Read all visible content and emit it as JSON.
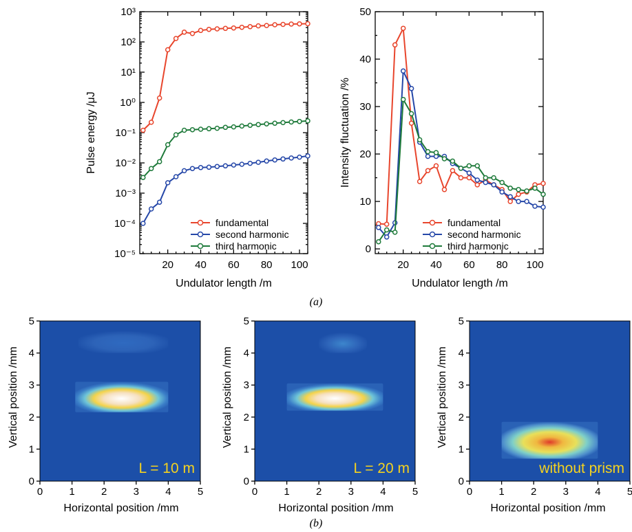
{
  "caption_a": "(a)",
  "caption_b": "(b)",
  "colors": {
    "fundamental": "#e8452c",
    "second": "#2547a8",
    "third": "#1e7a3a",
    "image_bg": "#1c4fa8",
    "label": "#f5d21f"
  },
  "chart_data": [
    {
      "type": "line",
      "ylog": true,
      "xlabel": "Undulator length /m",
      "ylabel": "Pulse energy /μJ",
      "xlim": [
        3,
        105
      ],
      "ylim_exp": [
        -5,
        3
      ],
      "xticks": [
        20,
        40,
        60,
        80,
        100
      ],
      "yticks_exp": [
        -5,
        -4,
        -3,
        -2,
        -1,
        0,
        1,
        2,
        3
      ],
      "x": [
        5,
        10,
        15,
        20,
        25,
        30,
        35,
        40,
        45,
        50,
        55,
        60,
        65,
        70,
        75,
        80,
        85,
        90,
        95,
        100,
        105
      ],
      "series": [
        {
          "name": "fundamental",
          "color": "#e8452c",
          "values": [
            0.12,
            0.22,
            1.4,
            55,
            130,
            210,
            190,
            240,
            260,
            270,
            280,
            290,
            305,
            320,
            340,
            350,
            370,
            380,
            390,
            395,
            400
          ]
        },
        {
          "name": "second harmonic",
          "color": "#2547a8",
          "values": [
            0.0001,
            0.0003,
            0.0005,
            0.0022,
            0.0035,
            0.0055,
            0.0065,
            0.007,
            0.0072,
            0.0076,
            0.008,
            0.0085,
            0.009,
            0.0097,
            0.0105,
            0.0115,
            0.0125,
            0.0135,
            0.0145,
            0.0155,
            0.017
          ]
        },
        {
          "name": "third harmonic",
          "color": "#1e7a3a",
          "values": [
            0.0033,
            0.0065,
            0.011,
            0.04,
            0.085,
            0.12,
            0.125,
            0.13,
            0.135,
            0.14,
            0.15,
            0.155,
            0.165,
            0.175,
            0.185,
            0.195,
            0.205,
            0.215,
            0.225,
            0.235,
            0.245
          ]
        }
      ]
    },
    {
      "type": "line",
      "xlabel": "Undulator length /m",
      "ylabel": "Intensity fluctuation /%",
      "xlim": [
        3,
        105
      ],
      "ylim": [
        -1,
        50
      ],
      "xticks": [
        20,
        40,
        60,
        80,
        100
      ],
      "yticks": [
        0,
        10,
        20,
        30,
        40,
        50
      ],
      "x": [
        5,
        10,
        15,
        20,
        25,
        30,
        35,
        40,
        45,
        50,
        55,
        60,
        65,
        70,
        75,
        80,
        85,
        90,
        95,
        100,
        105
      ],
      "series": [
        {
          "name": "fundamental",
          "color": "#e8452c",
          "values": [
            5.3,
            5.2,
            43,
            46.5,
            26.5,
            14.2,
            16.5,
            17.5,
            12.5,
            16.5,
            15,
            15,
            13.5,
            14.5,
            13.5,
            12.5,
            10,
            11.5,
            12,
            13.5,
            13.8
          ]
        },
        {
          "name": "second harmonic",
          "color": "#2547a8",
          "values": [
            4.5,
            2.5,
            5.5,
            37.5,
            33.8,
            22.5,
            19.5,
            19.5,
            19.5,
            18,
            17,
            16,
            14.5,
            14,
            13.5,
            12,
            11,
            10,
            10,
            9,
            8.8
          ]
        },
        {
          "name": "third harmonic",
          "color": "#1e7a3a",
          "values": [
            1.5,
            4,
            3.5,
            31.5,
            28.5,
            23,
            20.5,
            20.3,
            19,
            18.5,
            17,
            17.5,
            17.5,
            15,
            15,
            14,
            12.8,
            12.5,
            12.2,
            12.8,
            11.5
          ]
        }
      ]
    },
    {
      "type": "heatmap",
      "xlabel": "Horizontal position /mm",
      "ylabel": "Vertical position /mm",
      "xlim": [
        0,
        5
      ],
      "ylim": [
        0,
        5
      ],
      "ticks": [
        0,
        1,
        2,
        3,
        4,
        5
      ],
      "label": "L = 10 m",
      "spots": [
        {
          "x": [
            1.1,
            4.0
          ],
          "y": [
            2.15,
            3.1
          ],
          "core": "#ffffff",
          "level": 0.95
        },
        {
          "x": [
            1.2,
            4.0
          ],
          "y": [
            4.0,
            4.7
          ],
          "core": "#2f6ac0",
          "level": 0.2
        }
      ]
    },
    {
      "type": "heatmap",
      "xlabel": "Horizontal position /mm",
      "ylabel": "Vertical position /mm",
      "xlim": [
        0,
        5
      ],
      "ylim": [
        0,
        5
      ],
      "ticks": [
        0,
        1,
        2,
        3,
        4,
        5
      ],
      "label": "L = 20 m",
      "spots": [
        {
          "x": [
            1.0,
            4.0
          ],
          "y": [
            2.2,
            3.05
          ],
          "core": "#ffffff",
          "level": 0.9
        },
        {
          "x": [
            2.0,
            3.5
          ],
          "y": [
            4.0,
            4.65
          ],
          "core": "#3d86cc",
          "level": 0.3
        }
      ]
    },
    {
      "type": "heatmap",
      "xlabel": "Horizontal position /mm",
      "ylabel": "Vertical position /mm",
      "xlim": [
        0,
        5
      ],
      "ylim": [
        0,
        5
      ],
      "ticks": [
        0,
        1,
        2,
        3,
        4,
        5
      ],
      "label": "without prism",
      "spots": [
        {
          "x": [
            1.0,
            4.0
          ],
          "y": [
            0.7,
            1.85
          ],
          "core": "#e03a2a",
          "level": 0.8
        }
      ]
    }
  ]
}
